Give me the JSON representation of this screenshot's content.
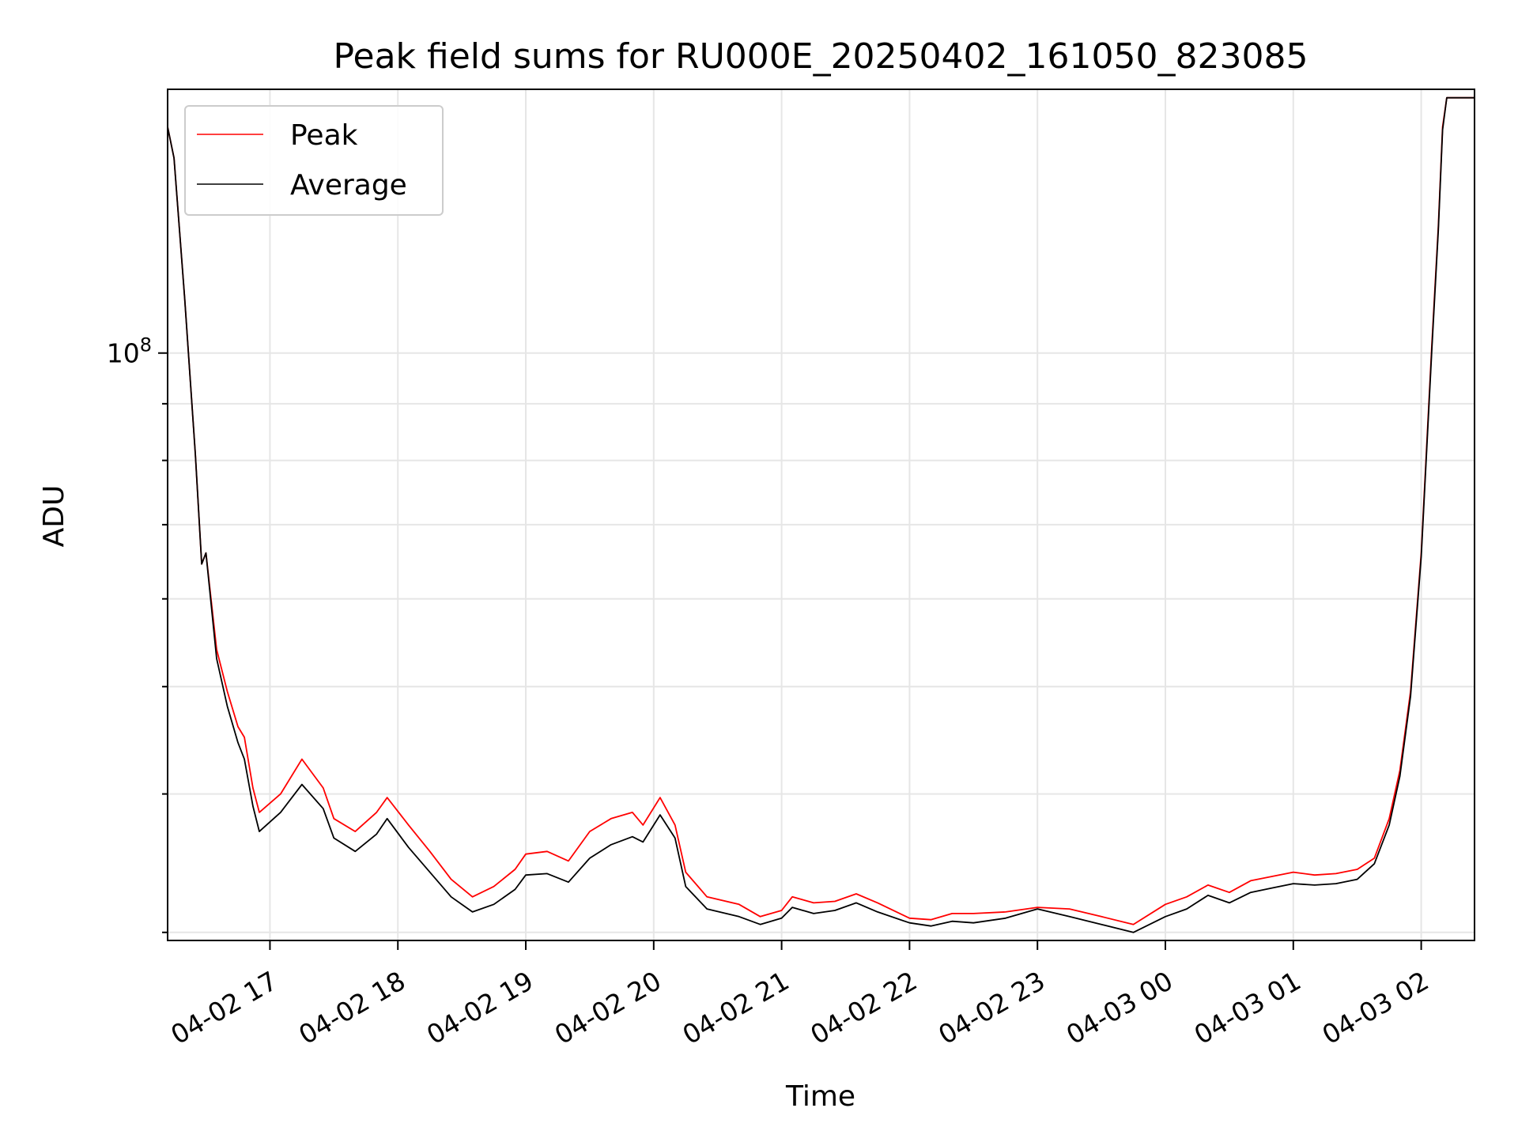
{
  "chart_data": {
    "type": "line",
    "title": "Peak field sums for RU000E_20250402_161050_823085",
    "xlabel": "Time",
    "ylabel": "ADU",
    "yscale": "log",
    "x_range": [
      "04-02 16:12",
      "04-03 02:25"
    ],
    "ylim": [
      29500000,
      173000000
    ],
    "x_ticks": [
      "04-02 17",
      "04-02 18",
      "04-02 19",
      "04-02 20",
      "04-02 21",
      "04-02 22",
      "04-02 23",
      "04-03 00",
      "04-03 01",
      "04-03 02"
    ],
    "y_tick_labels": [
      {
        "value": 100000000,
        "label": "10^8"
      }
    ],
    "y_minor_ticks": [
      30000000,
      40000000,
      50000000,
      60000000,
      70000000,
      80000000,
      90000000,
      200000000
    ],
    "grid": true,
    "legend_position": "upper-left",
    "series": [
      {
        "name": "Peak",
        "color": "#ff0000",
        "points": [
          [
            "04-02 16:12",
            160000000
          ],
          [
            "04-02 16:15",
            150000000
          ],
          [
            "04-02 16:20",
            112000000
          ],
          [
            "04-02 16:25",
            81000000
          ],
          [
            "04-02 16:28",
            64500000
          ],
          [
            "04-02 16:30",
            66000000
          ],
          [
            "04-02 16:35",
            54000000
          ],
          [
            "04-02 16:40",
            49500000
          ],
          [
            "04-02 16:45",
            46000000
          ],
          [
            "04-02 16:48",
            45000000
          ],
          [
            "04-02 16:52",
            40500000
          ],
          [
            "04-02 16:55",
            38500000
          ],
          [
            "04-02 17:05",
            40000000
          ],
          [
            "04-02 17:15",
            43000000
          ],
          [
            "04-02 17:25",
            40500000
          ],
          [
            "04-02 17:30",
            38000000
          ],
          [
            "04-02 17:40",
            37000000
          ],
          [
            "04-02 17:50",
            38500000
          ],
          [
            "04-02 17:55",
            39700000
          ],
          [
            "04-02 18:05",
            37500000
          ],
          [
            "04-02 18:15",
            35500000
          ],
          [
            "04-02 18:25",
            33500000
          ],
          [
            "04-02 18:35",
            32300000
          ],
          [
            "04-02 18:45",
            33000000
          ],
          [
            "04-02 18:55",
            34200000
          ],
          [
            "04-02 19:00",
            35300000
          ],
          [
            "04-02 19:10",
            35500000
          ],
          [
            "04-02 19:20",
            34800000
          ],
          [
            "04-02 19:30",
            37000000
          ],
          [
            "04-02 19:40",
            38000000
          ],
          [
            "04-02 19:50",
            38500000
          ],
          [
            "04-02 19:55",
            37500000
          ],
          [
            "04-02 20:03",
            39700000
          ],
          [
            "04-02 20:10",
            37500000
          ],
          [
            "04-02 20:15",
            34000000
          ],
          [
            "04-02 20:25",
            32300000
          ],
          [
            "04-02 20:40",
            31800000
          ],
          [
            "04-02 20:50",
            31000000
          ],
          [
            "04-02 21:00",
            31400000
          ],
          [
            "04-02 21:05",
            32300000
          ],
          [
            "04-02 21:15",
            31900000
          ],
          [
            "04-02 21:25",
            32000000
          ],
          [
            "04-02 21:35",
            32500000
          ],
          [
            "04-02 21:45",
            31900000
          ],
          [
            "04-02 22:00",
            30900000
          ],
          [
            "04-02 22:10",
            30800000
          ],
          [
            "04-02 22:20",
            31200000
          ],
          [
            "04-02 22:30",
            31200000
          ],
          [
            "04-02 22:45",
            31300000
          ],
          [
            "04-02 23:00",
            31600000
          ],
          [
            "04-02 23:15",
            31500000
          ],
          [
            "04-02 23:30",
            31000000
          ],
          [
            "04-02 23:45",
            30500000
          ],
          [
            "04-03 00:00",
            31800000
          ],
          [
            "04-03 00:10",
            32300000
          ],
          [
            "04-03 00:20",
            33100000
          ],
          [
            "04-03 00:30",
            32600000
          ],
          [
            "04-03 00:40",
            33400000
          ],
          [
            "04-03 00:50",
            33700000
          ],
          [
            "04-03 01:00",
            34000000
          ],
          [
            "04-03 01:10",
            33800000
          ],
          [
            "04-03 01:20",
            33900000
          ],
          [
            "04-03 01:30",
            34200000
          ],
          [
            "04-03 01:38",
            35000000
          ],
          [
            "04-03 01:45",
            38000000
          ],
          [
            "04-03 01:50",
            42000000
          ],
          [
            "04-03 01:55",
            49500000
          ],
          [
            "04-03 02:00",
            66000000
          ],
          [
            "04-03 02:05",
            102000000
          ],
          [
            "04-03 02:08",
            130000000
          ],
          [
            "04-03 02:10",
            160000000
          ],
          [
            "04-03 02:12",
            170000000
          ],
          [
            "04-03 02:25",
            170000000
          ]
        ]
      },
      {
        "name": "Average",
        "color": "#000000",
        "points": [
          [
            "04-02 16:12",
            160000000
          ],
          [
            "04-02 16:15",
            150000000
          ],
          [
            "04-02 16:20",
            112000000
          ],
          [
            "04-02 16:25",
            81000000
          ],
          [
            "04-02 16:28",
            64500000
          ],
          [
            "04-02 16:30",
            66000000
          ],
          [
            "04-02 16:35",
            53000000
          ],
          [
            "04-02 16:40",
            48000000
          ],
          [
            "04-02 16:45",
            44500000
          ],
          [
            "04-02 16:48",
            43000000
          ],
          [
            "04-02 16:52",
            39000000
          ],
          [
            "04-02 16:55",
            37000000
          ],
          [
            "04-02 17:05",
            38500000
          ],
          [
            "04-02 17:15",
            40800000
          ],
          [
            "04-02 17:25",
            38800000
          ],
          [
            "04-02 17:30",
            36500000
          ],
          [
            "04-02 17:40",
            35500000
          ],
          [
            "04-02 17:50",
            36800000
          ],
          [
            "04-02 17:55",
            38000000
          ],
          [
            "04-02 18:05",
            35800000
          ],
          [
            "04-02 18:15",
            34000000
          ],
          [
            "04-02 18:25",
            32300000
          ],
          [
            "04-02 18:35",
            31300000
          ],
          [
            "04-02 18:45",
            31800000
          ],
          [
            "04-02 18:55",
            32800000
          ],
          [
            "04-02 19:00",
            33800000
          ],
          [
            "04-02 19:10",
            33900000
          ],
          [
            "04-02 19:20",
            33300000
          ],
          [
            "04-02 19:30",
            35000000
          ],
          [
            "04-02 19:40",
            36000000
          ],
          [
            "04-02 19:50",
            36600000
          ],
          [
            "04-02 19:55",
            36200000
          ],
          [
            "04-02 20:03",
            38300000
          ],
          [
            "04-02 20:10",
            36500000
          ],
          [
            "04-02 20:15",
            33000000
          ],
          [
            "04-02 20:25",
            31500000
          ],
          [
            "04-02 20:40",
            31000000
          ],
          [
            "04-02 20:50",
            30500000
          ],
          [
            "04-02 21:00",
            30900000
          ],
          [
            "04-02 21:05",
            31600000
          ],
          [
            "04-02 21:15",
            31200000
          ],
          [
            "04-02 21:25",
            31400000
          ],
          [
            "04-02 21:35",
            31900000
          ],
          [
            "04-02 21:45",
            31300000
          ],
          [
            "04-02 22:00",
            30600000
          ],
          [
            "04-02 22:10",
            30400000
          ],
          [
            "04-02 22:20",
            30700000
          ],
          [
            "04-02 22:30",
            30600000
          ],
          [
            "04-02 22:45",
            30900000
          ],
          [
            "04-02 23:00",
            31500000
          ],
          [
            "04-02 23:15",
            31000000
          ],
          [
            "04-02 23:30",
            30500000
          ],
          [
            "04-02 23:45",
            30000000
          ],
          [
            "04-03 00:00",
            31000000
          ],
          [
            "04-03 00:10",
            31500000
          ],
          [
            "04-03 00:20",
            32400000
          ],
          [
            "04-03 00:30",
            31900000
          ],
          [
            "04-03 00:40",
            32600000
          ],
          [
            "04-03 00:50",
            32900000
          ],
          [
            "04-03 01:00",
            33200000
          ],
          [
            "04-03 01:10",
            33100000
          ],
          [
            "04-03 01:20",
            33200000
          ],
          [
            "04-03 01:30",
            33500000
          ],
          [
            "04-03 01:38",
            34600000
          ],
          [
            "04-03 01:45",
            37500000
          ],
          [
            "04-03 01:50",
            41500000
          ],
          [
            "04-03 01:55",
            49000000
          ],
          [
            "04-03 02:00",
            65500000
          ],
          [
            "04-03 02:05",
            101000000
          ],
          [
            "04-03 02:08",
            129000000
          ],
          [
            "04-03 02:10",
            159000000
          ],
          [
            "04-03 02:12",
            170000000
          ],
          [
            "04-03 02:25",
            170000000
          ]
        ]
      }
    ]
  }
}
